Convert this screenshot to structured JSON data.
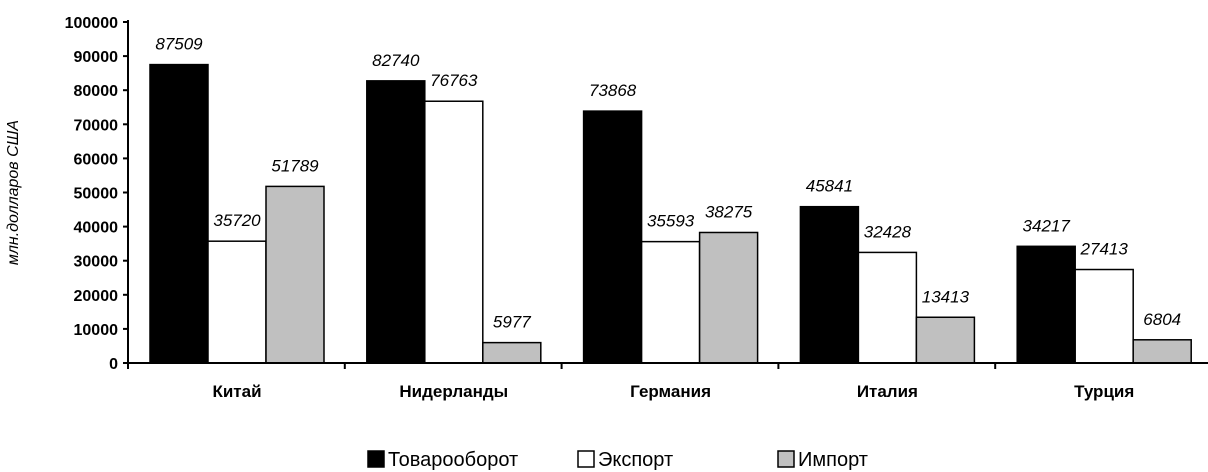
{
  "chart_data": {
    "type": "bar",
    "title": "",
    "xlabel": "",
    "ylabel": "млн.долларов США",
    "ylim": [
      0,
      100000
    ],
    "yticks": [
      "0",
      "10000",
      "20000",
      "30000",
      "40000",
      "50000",
      "60000",
      "70000",
      "80000",
      "90000",
      "100000"
    ],
    "grid": false,
    "legend_position": "bottom",
    "categories": [
      "Китай",
      "Нидерланды",
      "Германия",
      "Италия",
      "Турция"
    ],
    "series": [
      {
        "name": "Товарооборот",
        "color": "#000000",
        "values": [
          87509,
          82740,
          73868,
          45841,
          34217
        ]
      },
      {
        "name": "Экспорт",
        "color": "#ffffff",
        "values": [
          35720,
          76763,
          35593,
          32428,
          27413
        ]
      },
      {
        "name": "Импорт",
        "color": "#c0c0c0",
        "values": [
          51789,
          5977,
          38275,
          13413,
          6804
        ]
      }
    ]
  }
}
